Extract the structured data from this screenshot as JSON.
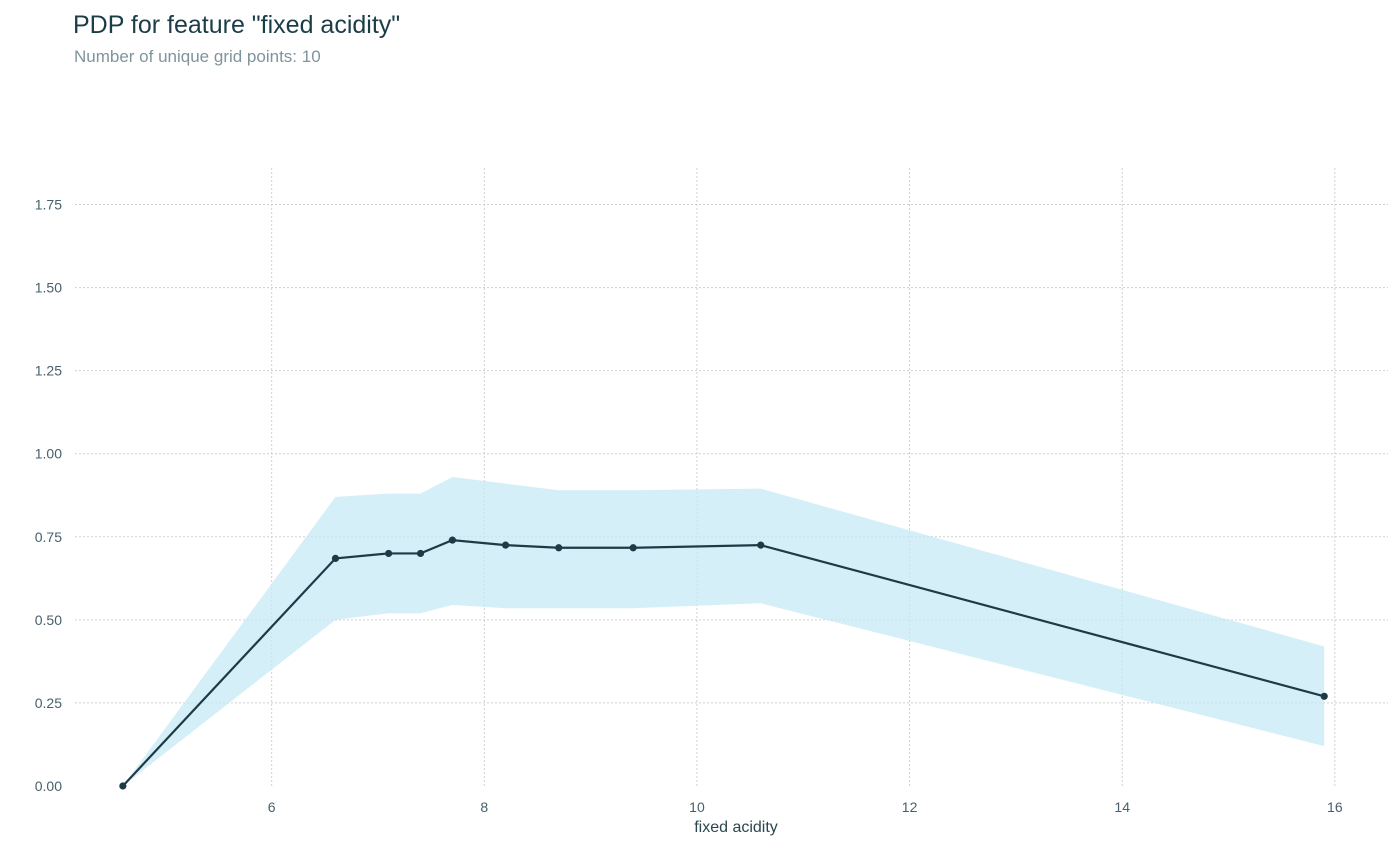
{
  "chart_data": {
    "type": "line",
    "title": "PDP for feature \"fixed acidity\"",
    "subtitle": "Number of unique grid points: 10",
    "xlabel": "fixed acidity",
    "ylabel": "",
    "x_ticks": [
      6,
      8,
      10,
      12,
      14,
      16
    ],
    "x_tick_labels": [
      "6",
      "8",
      "10",
      "12",
      "14",
      "16"
    ],
    "y_ticks": [
      0.0,
      0.25,
      0.5,
      0.75,
      1.0,
      1.25,
      1.5,
      1.75
    ],
    "y_tick_labels": [
      "0.00",
      "0.25",
      "0.50",
      "0.75",
      "1.00",
      "1.25",
      "1.50",
      "1.75"
    ],
    "xlim": [
      4.15,
      16.5
    ],
    "ylim": [
      0.0,
      1.86
    ],
    "grid": true,
    "series": [
      {
        "x": [
          4.6,
          6.6,
          7.1,
          7.4,
          7.7,
          8.2,
          8.7,
          9.4,
          10.6,
          15.9
        ],
        "y": [
          0.0,
          0.685,
          0.7,
          0.7,
          0.74,
          0.725,
          0.717,
          0.717,
          0.725,
          0.27
        ],
        "upper": [
          0.0,
          0.87,
          0.88,
          0.88,
          0.93,
          0.91,
          0.89,
          0.89,
          0.895,
          0.42
        ],
        "lower": [
          0.0,
          0.5,
          0.52,
          0.52,
          0.545,
          0.535,
          0.535,
          0.535,
          0.55,
          0.12
        ]
      }
    ],
    "colors": {
      "line": "#1e3a45",
      "band": "#c6eaf4",
      "grid": "#cfcfcf",
      "title": "#1c3d47",
      "subtitle": "#7f949c"
    }
  }
}
